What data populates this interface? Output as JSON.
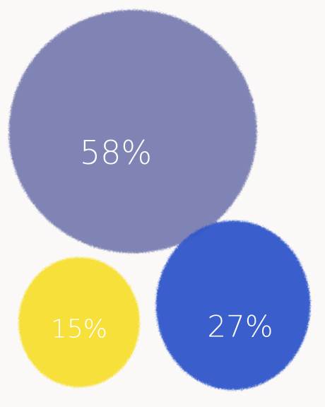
{
  "chart_data": {
    "type": "bubble",
    "title": "",
    "slices": [
      {
        "value": 58,
        "label": "58%",
        "color": "#7a7db1"
      },
      {
        "value": 27,
        "label": "27%",
        "color": "#3057c9"
      },
      {
        "value": 15,
        "label": "15%",
        "color": "#f7de2e"
      }
    ]
  }
}
